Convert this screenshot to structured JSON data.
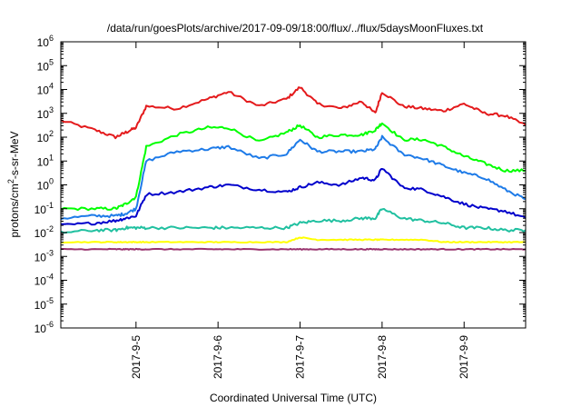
{
  "chart_data": {
    "type": "line",
    "title": "/data/run/goesPlots/archive/2017-09-09/18:00/flux/../flux/5daysMoonFluxes.txt",
    "xlabel": "Coordinated Universal Time (UTC)",
    "ylabel": {
      "pre": "protons/cm",
      "sup": "2",
      "post": "-s-sr-MeV"
    },
    "yscale": "log",
    "ylim": [
      -6,
      6
    ],
    "xlim": [
      "2017-09-04 02:00",
      "2017-09-09 18:00"
    ],
    "x_ticks": [
      "2017-9-5",
      "2017-9-6",
      "2017-9-7",
      "2017-9-8",
      "2017-9-9"
    ],
    "y_ticks": [
      "10^-6",
      "10^-5",
      "10^-4",
      "10^-3",
      "10^-2",
      "10^-1",
      "10^0",
      "10^1",
      "10^2",
      "10^3",
      "10^4",
      "10^5",
      "10^6"
    ],
    "grid": false,
    "x": [
      "2017-09-04 02:00",
      "2017-09-04 12:00",
      "2017-09-04 18:00",
      "2017-09-04 21:00",
      "2017-09-05 00:00",
      "2017-09-05 03:00",
      "2017-09-05 12:00",
      "2017-09-05 21:00",
      "2017-09-06 03:00",
      "2017-09-06 12:00",
      "2017-09-06 20:00",
      "2017-09-07 00:00",
      "2017-09-07 05:00",
      "2017-09-07 12:00",
      "2017-09-07 18:00",
      "2017-09-07 22:00",
      "2017-09-08 00:00",
      "2017-09-08 06:00",
      "2017-09-08 12:00",
      "2017-09-08 18:00",
      "2017-09-09 00:00",
      "2017-09-09 06:00",
      "2017-09-09 12:00",
      "2017-09-09 18:00"
    ],
    "series": [
      {
        "color": "#e41a1c",
        "values": [
          2.7,
          2.3,
          2.0,
          2.2,
          2.4,
          3.3,
          3.2,
          3.6,
          3.9,
          3.3,
          3.6,
          4.1,
          3.4,
          3.2,
          3.5,
          3.0,
          3.9,
          3.3,
          3.2,
          3.1,
          3.4,
          3.0,
          2.9,
          2.5
        ]
      },
      {
        "color": "#00ff00",
        "values": [
          -1.0,
          -1.0,
          -1.0,
          -0.8,
          -0.5,
          1.6,
          2.1,
          2.4,
          2.4,
          1.8,
          2.2,
          2.5,
          2.0,
          2.1,
          2.1,
          2.3,
          2.6,
          1.9,
          1.9,
          1.6,
          1.2,
          0.9,
          0.6,
          0.6
        ]
      },
      {
        "color": "#1e7be8",
        "values": [
          -1.4,
          -1.3,
          -1.3,
          -1.2,
          -1.0,
          1.0,
          1.4,
          1.5,
          1.6,
          1.1,
          1.3,
          1.9,
          1.4,
          1.4,
          1.4,
          1.5,
          2.0,
          1.3,
          1.1,
          0.8,
          0.5,
          0.3,
          -0.2,
          -0.6
        ]
      },
      {
        "color": "#0000cc",
        "values": [
          -1.7,
          -1.6,
          -1.5,
          -1.4,
          -1.3,
          -0.4,
          -0.3,
          -0.1,
          0.0,
          -0.2,
          -0.3,
          -0.1,
          0.1,
          0.0,
          0.3,
          0.2,
          0.7,
          -0.1,
          -0.2,
          -0.5,
          -0.8,
          -1.0,
          -1.1,
          -1.4
        ]
      },
      {
        "color": "#20c0a0",
        "values": [
          -2.0,
          -1.9,
          -1.9,
          -1.8,
          -1.8,
          -1.8,
          -1.8,
          -1.8,
          -1.8,
          -1.8,
          -1.8,
          -1.6,
          -1.5,
          -1.5,
          -1.4,
          -1.4,
          -1.0,
          -1.4,
          -1.5,
          -1.6,
          -1.8,
          -1.8,
          -1.9,
          -1.9
        ]
      },
      {
        "color": "#ffff00",
        "values": [
          -2.4,
          -2.4,
          -2.4,
          -2.4,
          -2.4,
          -2.4,
          -2.4,
          -2.4,
          -2.4,
          -2.4,
          -2.4,
          -2.2,
          -2.3,
          -2.3,
          -2.3,
          -2.3,
          -2.3,
          -2.3,
          -2.3,
          -2.4,
          -2.4,
          -2.4,
          -2.4,
          -2.4
        ]
      },
      {
        "color": "#99336e",
        "values": [
          -2.7,
          -2.7,
          -2.7,
          -2.7,
          -2.7,
          -2.7,
          -2.7,
          -2.7,
          -2.7,
          -2.7,
          -2.7,
          -2.7,
          -2.7,
          -2.7,
          -2.7,
          -2.7,
          -2.7,
          -2.7,
          -2.7,
          -2.7,
          -2.7,
          -2.7,
          -2.7,
          -2.7
        ]
      }
    ]
  }
}
